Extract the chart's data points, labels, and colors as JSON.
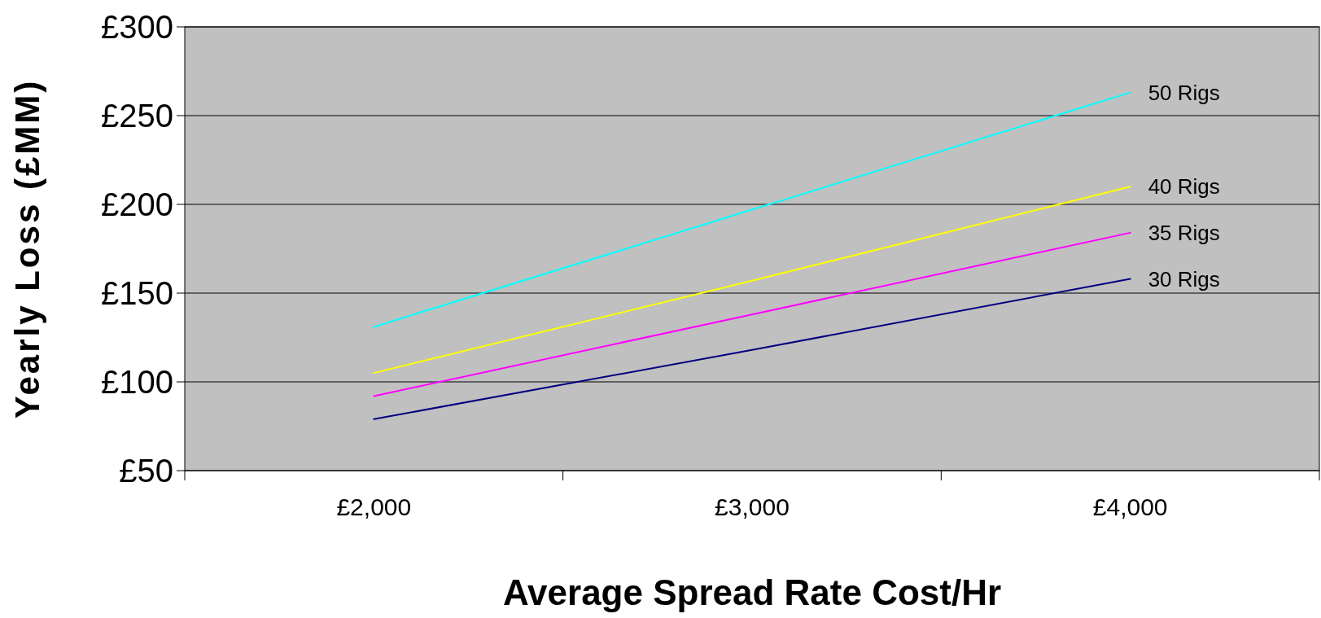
{
  "chart_data": {
    "type": "line",
    "xlabel": "Average Spread Rate Cost/Hr",
    "ylabel": "Yearly Loss (£MM)",
    "categories": [
      "£2,000",
      "£3,000",
      "£4,000"
    ],
    "series": [
      {
        "name": "50 Rigs",
        "color": "#00ffff",
        "values": [
          131,
          197,
          263
        ]
      },
      {
        "name": "40 Rigs",
        "color": "#ffff00",
        "values": [
          105,
          157,
          210
        ]
      },
      {
        "name": "35 Rigs",
        "color": "#ff00ff",
        "values": [
          92,
          138,
          184
        ]
      },
      {
        "name": "30 Rigs",
        "color": "#000080",
        "values": [
          79,
          118,
          158
        ]
      }
    ],
    "ylim": [
      50,
      300
    ],
    "yticks": [
      {
        "value": 50,
        "label": "£50"
      },
      {
        "value": 100,
        "label": "£100"
      },
      {
        "value": 150,
        "label": "£150"
      },
      {
        "value": 200,
        "label": "£200"
      },
      {
        "value": 250,
        "label": "£250"
      },
      {
        "value": 300,
        "label": "£300"
      }
    ],
    "grid": "y"
  }
}
